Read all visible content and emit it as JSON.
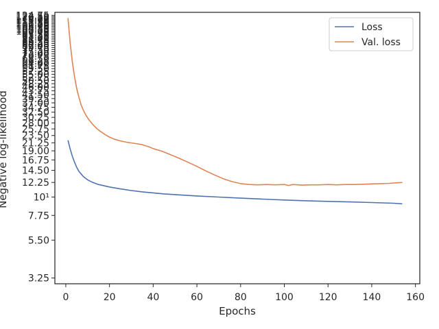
{
  "chart_data": {
    "type": "line",
    "xlabel": "Epochs",
    "ylabel": "Negative log-likelihood",
    "xlim": [
      -5,
      162
    ],
    "ylim": [
      3.0,
      130
    ],
    "yscale": "log",
    "grid": false,
    "legend_position": "top-right",
    "x_ticks": [
      0,
      20,
      40,
      60,
      80,
      100,
      120,
      140,
      160
    ],
    "x_tick_labels": [
      "0",
      "20",
      "40",
      "60",
      "80",
      "100",
      "120",
      "140",
      "160"
    ],
    "y_ticks": [
      3.25,
      5.5,
      7.75,
      10,
      12.25,
      14.5,
      16.75,
      19,
      21.25,
      23.5,
      25.75,
      28,
      30.25,
      32.5,
      34.75,
      37,
      39.25,
      41.5,
      43.75,
      46,
      48.25,
      50.5,
      52.75,
      55,
      57.25,
      59.5,
      61.75,
      64,
      66.25,
      68.5,
      70.75,
      73,
      75.25,
      77.5,
      79.75,
      82,
      84.25,
      86.5,
      88.75,
      91,
      93.25,
      95.5,
      97.75,
      100,
      102.25,
      104.5,
      106.75,
      109,
      111.25,
      113.5,
      115.75,
      118,
      120.25,
      122.5,
      124.75
    ],
    "y_tick_labels": [
      "3.25",
      "5.50",
      "7.75",
      "10¹",
      "12.25",
      "14.50",
      "16.75",
      "19.00",
      "21.25",
      "23.50",
      "25.75",
      "28.00",
      "30.25",
      "32.50",
      "34.75",
      "37.00",
      "39.25",
      "41.50",
      "43.75",
      "46.00",
      "48.25",
      "50.50",
      "52.75",
      "55.00",
      "57.25",
      "59.50",
      "61.75",
      "64.00",
      "66.25",
      "68.50",
      "70.75",
      "73.00",
      "75.25",
      "77.50",
      "79.75",
      "82.00",
      "84.25",
      "86.50",
      "88.75",
      "91.00",
      "93.25",
      "95.50",
      "97.75",
      "100.00",
      "102.25",
      "104.50",
      "106.75",
      "109.00",
      "111.25",
      "113.50",
      "115.75",
      "118.00",
      "120.25",
      "122.50",
      "124.75"
    ],
    "series": [
      {
        "name": "Loss",
        "color": "#4c72b0",
        "x": [
          1,
          2,
          3,
          4,
          5,
          6,
          7,
          8,
          10,
          12,
          15,
          20,
          25,
          30,
          35,
          40,
          45,
          50,
          55,
          60,
          70,
          80,
          90,
          100,
          110,
          120,
          130,
          140,
          150,
          154
        ],
        "y": [
          22.0,
          19.5,
          17.6,
          16.2,
          15.1,
          14.3,
          13.8,
          13.3,
          12.7,
          12.3,
          11.9,
          11.5,
          11.2,
          10.95,
          10.75,
          10.6,
          10.45,
          10.35,
          10.25,
          10.15,
          10.0,
          9.85,
          9.72,
          9.6,
          9.5,
          9.42,
          9.35,
          9.27,
          9.18,
          9.1
        ]
      },
      {
        "name": "Val. loss",
        "color": "#dd8452",
        "x": [
          1,
          2,
          3,
          4,
          5,
          6,
          7,
          8,
          9,
          10,
          12,
          14,
          16,
          18,
          20,
          22,
          25,
          28,
          30,
          33,
          35,
          38,
          40,
          44,
          48,
          52,
          56,
          60,
          64,
          68,
          72,
          76,
          80,
          84,
          88,
          92,
          96,
          100,
          102,
          104,
          108,
          112,
          116,
          120,
          124,
          128,
          132,
          136,
          140,
          144,
          148,
          152,
          154
        ],
        "y": [
          120,
          85,
          65,
          53,
          45,
          40,
          36,
          33.5,
          31.5,
          30,
          27.7,
          26,
          24.8,
          23.8,
          23.0,
          22.4,
          21.8,
          21.4,
          21.2,
          20.9,
          20.7,
          20.1,
          19.6,
          18.9,
          18.0,
          17.1,
          16.2,
          15.3,
          14.4,
          13.6,
          12.9,
          12.4,
          12.05,
          11.9,
          11.85,
          11.9,
          11.85,
          11.9,
          11.75,
          11.9,
          11.8,
          11.85,
          11.85,
          11.9,
          11.85,
          11.9,
          11.9,
          11.95,
          12.0,
          12.05,
          12.1,
          12.2,
          12.25
        ]
      }
    ]
  }
}
